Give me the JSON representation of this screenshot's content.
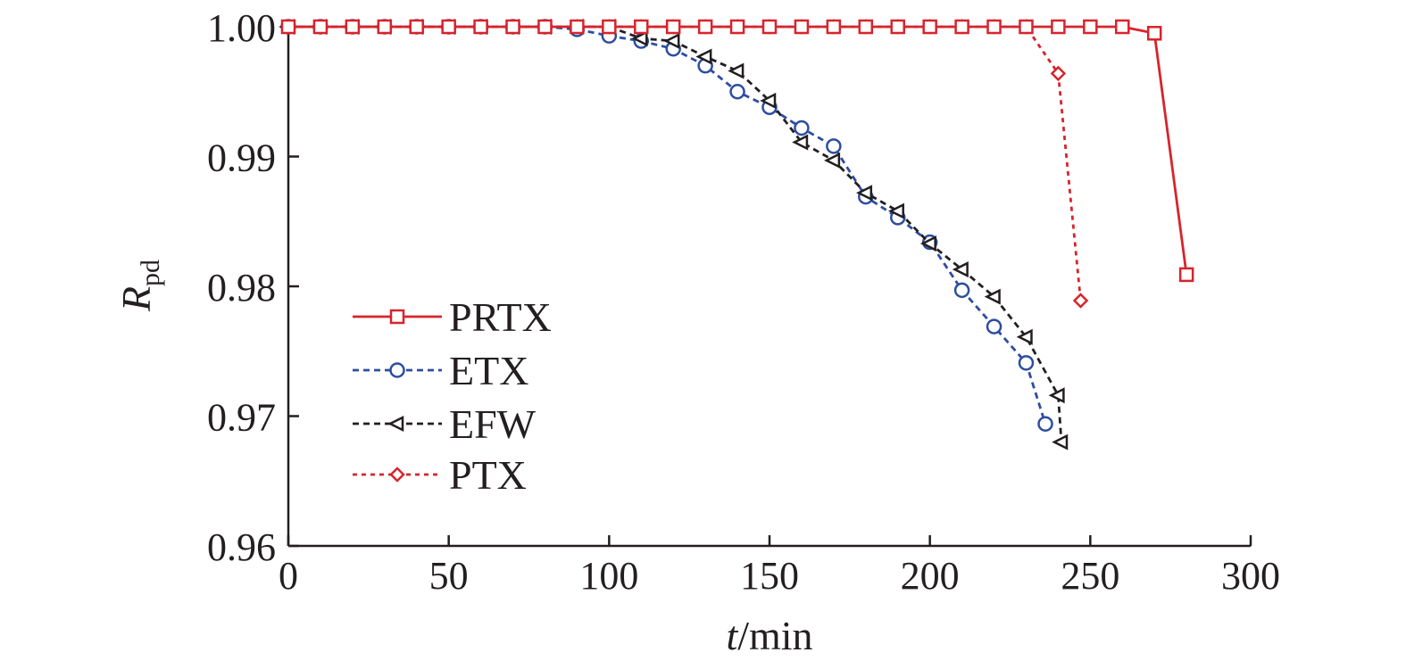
{
  "chart_data": {
    "type": "line",
    "title": "",
    "xlabel_var": "t",
    "xlabel_unit": "/min",
    "ylabel_var": "R",
    "ylabel_sub": "pd",
    "xlim": [
      0,
      300
    ],
    "ylim": [
      0.96,
      1.0
    ],
    "x_ticks": [
      0,
      50,
      100,
      150,
      200,
      250,
      300
    ],
    "x_tick_labels": [
      "0",
      "50",
      "100",
      "150",
      "200",
      "250",
      "300"
    ],
    "y_ticks": [
      0.96,
      0.97,
      0.98,
      0.99,
      1.0
    ],
    "y_tick_labels": [
      "0.96",
      "0.97",
      "0.98",
      "0.99",
      "1.00"
    ],
    "grid": false,
    "legend_position": "bottom-left",
    "series": [
      {
        "name": "PRTX",
        "color": "#d7242c",
        "line_style": "solid",
        "marker": "square",
        "x": [
          0,
          10,
          20,
          30,
          40,
          50,
          60,
          70,
          80,
          90,
          100,
          110,
          120,
          130,
          140,
          150,
          160,
          170,
          180,
          190,
          200,
          210,
          220,
          230,
          240,
          250,
          260,
          270,
          280
        ],
        "y": [
          1.0,
          1.0,
          1.0,
          1.0,
          1.0,
          1.0,
          1.0,
          1.0,
          1.0,
          1.0,
          1.0,
          1.0,
          1.0,
          1.0,
          1.0,
          1.0,
          1.0,
          1.0,
          1.0,
          1.0,
          1.0,
          1.0,
          1.0,
          1.0,
          1.0,
          1.0,
          1.0,
          0.9995,
          0.9809
        ]
      },
      {
        "name": "ETX",
        "color": "#2d4da0",
        "line_style": "dashed",
        "marker": "circle",
        "x": [
          0,
          10,
          20,
          30,
          40,
          50,
          60,
          70,
          80,
          90,
          100,
          110,
          120,
          130,
          140,
          150,
          160,
          170,
          180,
          190,
          200,
          210,
          220,
          230,
          236
        ],
        "y": [
          1.0,
          1.0,
          1.0,
          1.0,
          1.0,
          1.0,
          1.0,
          1.0,
          1.0,
          0.9998,
          0.9993,
          0.9989,
          0.9983,
          0.997,
          0.995,
          0.9938,
          0.9922,
          0.9908,
          0.9869,
          0.9853,
          0.9834,
          0.9797,
          0.9769,
          0.9741,
          0.9694
        ]
      },
      {
        "name": "EFW",
        "color": "#231f20",
        "line_style": "dashed",
        "marker": "triangle-left",
        "x": [
          0,
          10,
          20,
          30,
          40,
          50,
          60,
          70,
          80,
          90,
          100,
          110,
          120,
          130,
          140,
          150,
          160,
          170,
          180,
          190,
          200,
          210,
          220,
          230,
          240,
          241
        ],
        "y": [
          1.0,
          1.0,
          1.0,
          1.0,
          1.0,
          1.0,
          1.0,
          1.0,
          1.0,
          1.0,
          1.0,
          0.9991,
          0.9989,
          0.9977,
          0.9966,
          0.9943,
          0.9911,
          0.9897,
          0.9872,
          0.9858,
          0.9833,
          0.9813,
          0.9792,
          0.9761,
          0.9716,
          0.968
        ]
      },
      {
        "name": "PTX",
        "color": "#d7242c",
        "line_style": "dotted",
        "marker": "diamond",
        "x": [
          0,
          10,
          20,
          30,
          40,
          50,
          60,
          70,
          80,
          90,
          100,
          110,
          120,
          130,
          140,
          150,
          160,
          170,
          180,
          190,
          200,
          210,
          220,
          230,
          240,
          247
        ],
        "y": [
          1.0,
          1.0,
          1.0,
          1.0,
          1.0,
          1.0,
          1.0,
          1.0,
          1.0,
          1.0,
          1.0,
          1.0,
          1.0,
          1.0,
          1.0,
          1.0,
          1.0,
          1.0,
          1.0,
          1.0,
          1.0,
          1.0,
          1.0,
          1.0,
          0.9964,
          0.9789
        ]
      }
    ]
  }
}
